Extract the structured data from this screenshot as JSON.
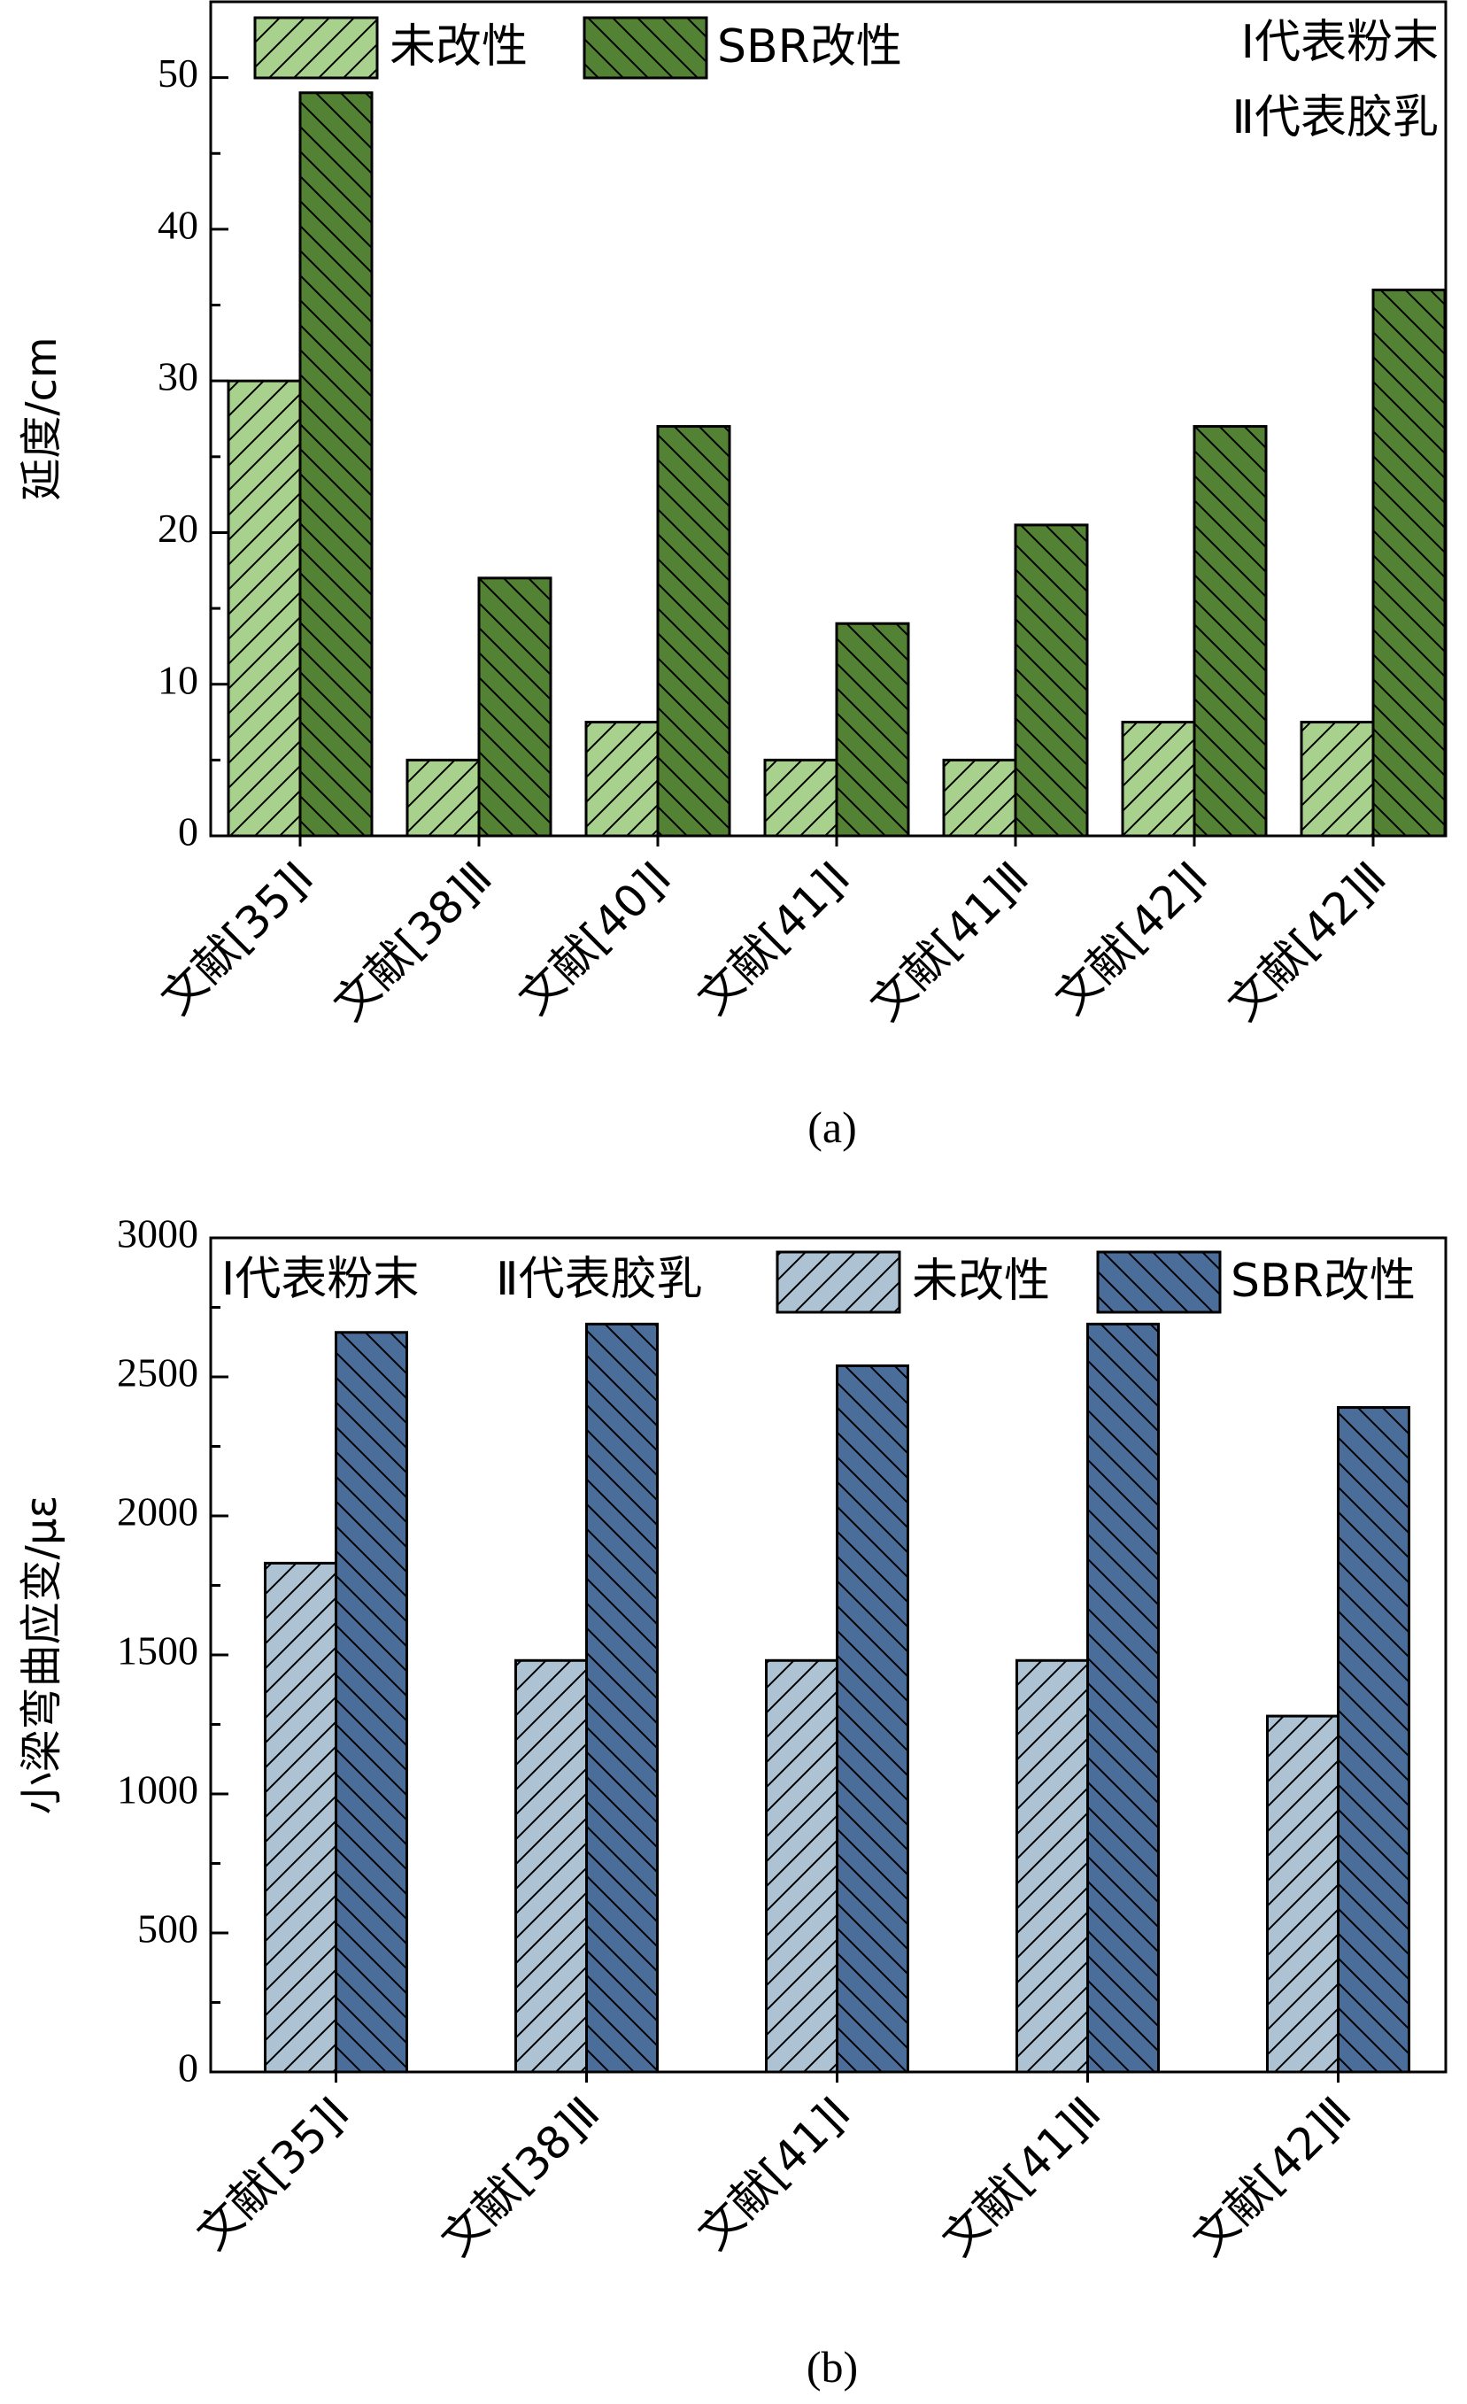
{
  "chart_data": [
    {
      "type": "bar",
      "panel": "(a)",
      "ylabel": "延度/cm",
      "ylim": [
        0,
        55
      ],
      "yticks": [
        0,
        10,
        20,
        30,
        40,
        50
      ],
      "categories": [
        "文献[35]Ⅰ",
        "文献[38]Ⅱ",
        "文献[40]Ⅰ",
        "文献[41]Ⅰ",
        "文献[41]Ⅱ",
        "文献[42]Ⅰ",
        "文献[42]Ⅱ"
      ],
      "series": [
        {
          "name": "未改性",
          "color": "#a9d18e",
          "hatch": "forward",
          "values": [
            30,
            5,
            7.5,
            5,
            5,
            7.5,
            7.5
          ]
        },
        {
          "name": "SBR改性",
          "color": "#548235",
          "hatch": "backward",
          "values": [
            49,
            17,
            27,
            14,
            20.5,
            27,
            36
          ]
        }
      ],
      "notes": [
        "Ⅰ代表粉末",
        "Ⅱ代表胶乳"
      ],
      "grid": false,
      "legend_position": "top"
    },
    {
      "type": "bar",
      "panel": "(b)",
      "ylabel": "小梁弯曲应变/με",
      "ylim": [
        0,
        3000
      ],
      "yticks": [
        0,
        500,
        1000,
        1500,
        2000,
        2500,
        3000
      ],
      "categories": [
        "文献[35]Ⅰ",
        "文献[38]Ⅱ",
        "文献[41]Ⅰ",
        "文献[41]Ⅱ",
        "文献[42]Ⅱ"
      ],
      "series": [
        {
          "name": "未改性",
          "color": "#adc3d3",
          "hatch": "forward",
          "values": [
            1830,
            1480,
            1480,
            1480,
            1280
          ]
        },
        {
          "name": "SBR改性",
          "color": "#4a6d9a",
          "hatch": "backward",
          "values": [
            2660,
            2690,
            2540,
            2690,
            2390
          ]
        }
      ],
      "notes": [
        "Ⅰ代表粉末",
        "Ⅱ代表胶乳"
      ],
      "grid": false,
      "legend_position": "top"
    }
  ]
}
